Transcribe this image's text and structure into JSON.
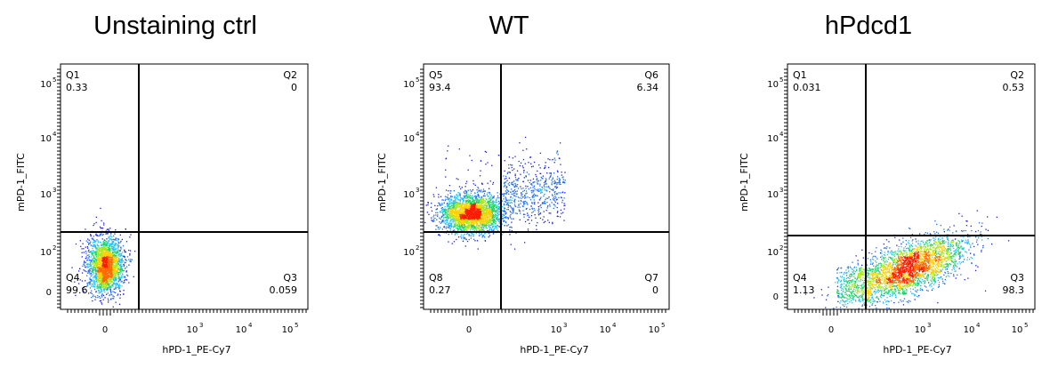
{
  "chart_data": [
    {
      "type": "scatter",
      "title": "Unstaining ctrl",
      "xlabel": "hPD-1_PE-Cy7",
      "ylabel": "mPD-1_FITC",
      "x_ticks": [
        {
          "base": "0",
          "exp": ""
        },
        {
          "base": "10",
          "exp": "3"
        },
        {
          "base": "10",
          "exp": "4"
        },
        {
          "base": "10",
          "exp": "5"
        }
      ],
      "y_ticks": [
        {
          "base": "0",
          "exp": ""
        },
        {
          "base": "10",
          "exp": "2"
        },
        {
          "base": "10",
          "exp": "3"
        },
        {
          "base": "10",
          "exp": "4"
        },
        {
          "base": "10",
          "exp": "5"
        }
      ],
      "quadrants": {
        "top_left": {
          "name": "Q1",
          "value": "0.33"
        },
        "top_right": {
          "name": "Q2",
          "value": "0"
        },
        "bottom_right": {
          "name": "Q3",
          "value": "0.059"
        },
        "bottom_left": {
          "name": "Q4",
          "value": "99.6"
        }
      },
      "population": {
        "x_center": 0,
        "y_center": 40,
        "density": "high"
      }
    },
    {
      "type": "scatter",
      "title": "WT",
      "xlabel": "hPD-1_PE-Cy7",
      "ylabel": "mPD-1_FITC",
      "x_ticks": [
        {
          "base": "0",
          "exp": ""
        },
        {
          "base": "10",
          "exp": "3"
        },
        {
          "base": "10",
          "exp": "4"
        },
        {
          "base": "10",
          "exp": "5"
        }
      ],
      "y_ticks": [
        {
          "base": "10",
          "exp": "2"
        },
        {
          "base": "10",
          "exp": "3"
        },
        {
          "base": "10",
          "exp": "4"
        },
        {
          "base": "10",
          "exp": "5"
        }
      ],
      "quadrants": {
        "top_left": {
          "name": "Q5",
          "value": "93.4"
        },
        "top_right": {
          "name": "Q6",
          "value": "6.34"
        },
        "bottom_right": {
          "name": "Q7",
          "value": "0"
        },
        "bottom_left": {
          "name": "Q8",
          "value": "0.27"
        }
      },
      "population": {
        "x_center": 0,
        "y_center": 400,
        "density": "high"
      }
    },
    {
      "type": "scatter",
      "title": "hPdcd1",
      "xlabel": "hPD-1_PE-Cy7",
      "ylabel": "mPD-1_FITC",
      "x_ticks": [
        {
          "base": "0",
          "exp": ""
        },
        {
          "base": "10",
          "exp": "3"
        },
        {
          "base": "10",
          "exp": "4"
        },
        {
          "base": "10",
          "exp": "5"
        }
      ],
      "y_ticks": [
        {
          "base": "0",
          "exp": ""
        },
        {
          "base": "10",
          "exp": "2"
        },
        {
          "base": "10",
          "exp": "3"
        },
        {
          "base": "10",
          "exp": "4"
        },
        {
          "base": "10",
          "exp": "5"
        }
      ],
      "quadrants": {
        "top_left": {
          "name": "Q1",
          "value": "0.031"
        },
        "top_right": {
          "name": "Q2",
          "value": "0.53"
        },
        "bottom_right": {
          "name": "Q3",
          "value": "98.3"
        },
        "bottom_left": {
          "name": "Q4",
          "value": "1.13"
        }
      },
      "population": {
        "x_center": 700,
        "y_center": 40,
        "density": "high"
      }
    }
  ],
  "colors": {
    "axis": "#000000",
    "density_low": "#1010ff",
    "density_mid": "#10c060",
    "density_high": "#ff2000"
  }
}
